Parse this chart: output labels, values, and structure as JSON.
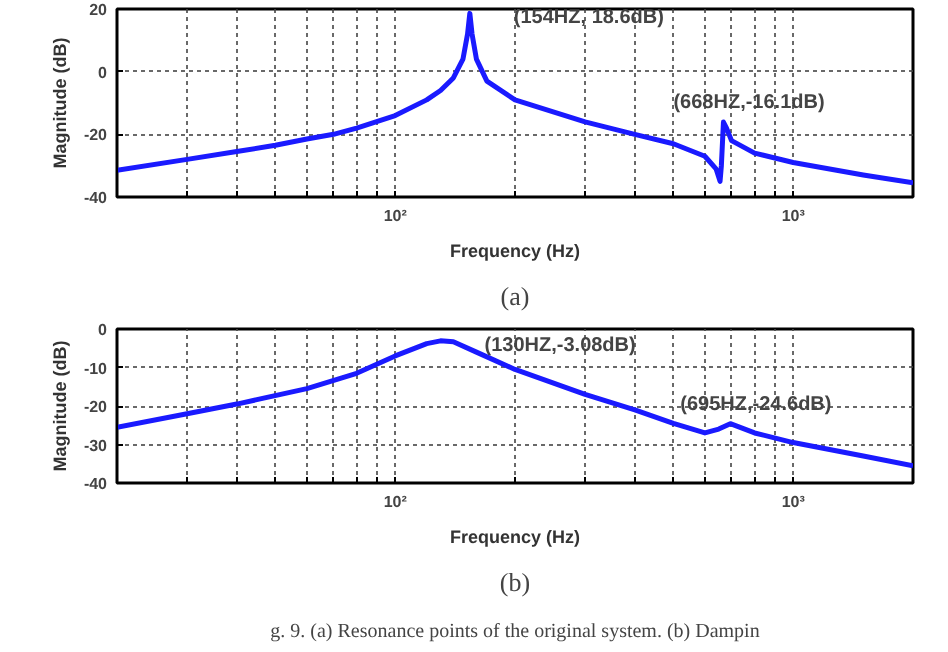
{
  "chart_data": [
    {
      "type": "line",
      "title": "(a)",
      "xlabel": "Frequency (Hz)",
      "ylabel": "Magnitude (dB)",
      "log": "x",
      "grid": true,
      "line_style": "solid",
      "xlim": [
        20,
        2000
      ],
      "ylim": [
        -40,
        20
      ],
      "yticks": [
        -40,
        -20,
        0,
        20
      ],
      "xticks": [
        {
          "value": 30,
          "label": null
        },
        {
          "value": 40,
          "label": null
        },
        {
          "value": 50,
          "label": null
        },
        {
          "value": 60,
          "label": null
        },
        {
          "value": 70,
          "label": null
        },
        {
          "value": 80,
          "label": null
        },
        {
          "value": 90,
          "label": null
        },
        {
          "value": 100,
          "label": "10²"
        },
        {
          "value": 200,
          "label": null
        },
        {
          "value": 300,
          "label": null
        },
        {
          "value": 400,
          "label": null
        },
        {
          "value": 500,
          "label": null
        },
        {
          "value": 600,
          "label": null
        },
        {
          "value": 700,
          "label": null
        },
        {
          "value": 800,
          "label": null
        },
        {
          "value": 900,
          "label": null
        },
        {
          "value": 1000,
          "label": "10³"
        }
      ],
      "x": [
        20,
        30,
        40,
        50,
        60,
        70,
        80,
        100,
        120,
        130,
        140,
        148,
        152,
        154,
        156,
        160,
        170,
        200,
        300,
        400,
        500,
        600,
        640,
        655,
        660,
        668,
        680,
        700,
        800,
        1000,
        1500,
        2000
      ],
      "series": [
        {
          "color": "#1a1aff",
          "values": [
            -31.5,
            -28,
            -25.5,
            -23.5,
            -21.5,
            -20,
            -18,
            -14,
            -9,
            -6,
            -2,
            4,
            12,
            18.6,
            12,
            4,
            -3,
            -9,
            -16,
            -20,
            -23,
            -27,
            -31,
            -35,
            -30,
            -16.1,
            -18,
            -22,
            -26,
            -29,
            -33,
            -35.5
          ]
        }
      ],
      "annotations": [
        {
          "text": "(154HZ, 18.6dB)",
          "x": 154,
          "y": 18.6
        },
        {
          "text": "(668HZ,-16.1dB)",
          "x": 668,
          "y": -16.1
        }
      ]
    },
    {
      "type": "line",
      "title": "(b)",
      "xlabel": "Frequency (Hz)",
      "ylabel": "Magnitude (dB)",
      "log": "x",
      "grid": true,
      "line_style": "solid",
      "xlim": [
        20,
        2000
      ],
      "ylim": [
        -40,
        0
      ],
      "yticks": [
        -40,
        -30,
        -20,
        -10,
        0
      ],
      "xticks": [
        {
          "value": 30,
          "label": null
        },
        {
          "value": 40,
          "label": null
        },
        {
          "value": 50,
          "label": null
        },
        {
          "value": 60,
          "label": null
        },
        {
          "value": 70,
          "label": null
        },
        {
          "value": 80,
          "label": null
        },
        {
          "value": 90,
          "label": null
        },
        {
          "value": 100,
          "label": "10²"
        },
        {
          "value": 200,
          "label": null
        },
        {
          "value": 300,
          "label": null
        },
        {
          "value": 400,
          "label": null
        },
        {
          "value": 500,
          "label": null
        },
        {
          "value": 600,
          "label": null
        },
        {
          "value": 700,
          "label": null
        },
        {
          "value": 800,
          "label": null
        },
        {
          "value": 900,
          "label": null
        },
        {
          "value": 1000,
          "label": "10³"
        }
      ],
      "x": [
        20,
        30,
        40,
        60,
        80,
        100,
        120,
        130,
        140,
        160,
        200,
        300,
        400,
        500,
        600,
        650,
        695,
        800,
        1000,
        1500,
        2000
      ],
      "series": [
        {
          "color": "#1a1aff",
          "values": [
            -25.5,
            -22,
            -19.5,
            -15.5,
            -11.5,
            -7,
            -3.8,
            -3.08,
            -3.3,
            -6,
            -10.5,
            -17,
            -21,
            -24.5,
            -27,
            -26,
            -24.6,
            -27,
            -29.5,
            -33,
            -35.5
          ]
        }
      ],
      "annotations": [
        {
          "text": "(130HZ,-3.08dB)",
          "x": 130,
          "y": -3.08
        },
        {
          "text": "(695HZ,-24.6dB)",
          "x": 695,
          "y": -24.6
        },
        "g. 9. (a) Resonance points of the original system. (b) Dampin"
      ]
    }
  ]
}
